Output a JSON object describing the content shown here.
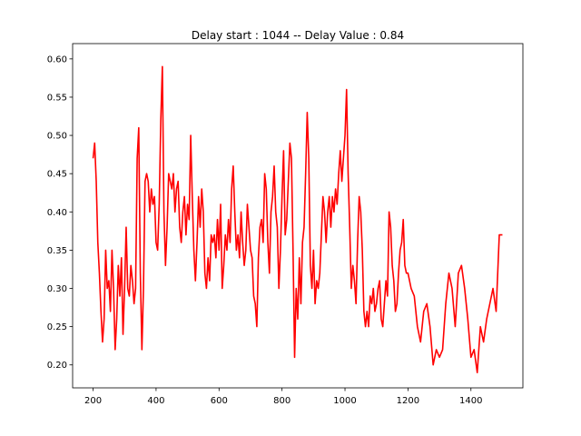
{
  "chart_data": {
    "type": "line",
    "title": "Delay start : 1044 -- Delay Value : 0.84",
    "color": "#ff0000",
    "x": [
      200,
      205,
      210,
      215,
      220,
      225,
      230,
      235,
      240,
      245,
      250,
      255,
      260,
      265,
      270,
      275,
      280,
      285,
      290,
      295,
      300,
      305,
      310,
      315,
      320,
      325,
      330,
      335,
      340,
      345,
      350,
      355,
      360,
      365,
      370,
      375,
      380,
      385,
      390,
      395,
      400,
      405,
      410,
      415,
      420,
      425,
      430,
      435,
      440,
      445,
      450,
      455,
      460,
      465,
      470,
      475,
      480,
      485,
      490,
      495,
      500,
      505,
      510,
      515,
      520,
      525,
      530,
      535,
      540,
      545,
      550,
      555,
      560,
      565,
      570,
      575,
      580,
      585,
      590,
      595,
      600,
      605,
      610,
      615,
      620,
      625,
      630,
      635,
      640,
      645,
      650,
      655,
      660,
      665,
      670,
      675,
      680,
      685,
      690,
      695,
      700,
      705,
      710,
      715,
      720,
      725,
      730,
      735,
      740,
      745,
      750,
      755,
      760,
      765,
      770,
      775,
      780,
      785,
      790,
      795,
      800,
      805,
      810,
      815,
      820,
      825,
      830,
      835,
      840,
      845,
      850,
      855,
      860,
      865,
      870,
      875,
      880,
      885,
      890,
      895,
      900,
      905,
      910,
      915,
      920,
      925,
      930,
      935,
      940,
      945,
      950,
      955,
      960,
      965,
      970,
      975,
      980,
      985,
      990,
      995,
      1000,
      1005,
      1010,
      1015,
      1020,
      1025,
      1030,
      1035,
      1040,
      1045,
      1050,
      1055,
      1060,
      1065,
      1070,
      1075,
      1080,
      1085,
      1090,
      1095,
      1100,
      1105,
      1110,
      1115,
      1120,
      1125,
      1130,
      1135,
      1140,
      1145,
      1150,
      1155,
      1160,
      1165,
      1170,
      1175,
      1180,
      1185,
      1190,
      1195,
      1200,
      1210,
      1220,
      1230,
      1240,
      1250,
      1260,
      1270,
      1280,
      1290,
      1300,
      1310,
      1320,
      1330,
      1340,
      1350,
      1360,
      1370,
      1380,
      1390,
      1400,
      1410,
      1420,
      1430,
      1440,
      1450,
      1460,
      1470,
      1480,
      1490,
      1500
    ],
    "values": [
      0.47,
      0.49,
      0.44,
      0.36,
      0.32,
      0.27,
      0.23,
      0.26,
      0.35,
      0.3,
      0.31,
      0.27,
      0.35,
      0.3,
      0.22,
      0.26,
      0.33,
      0.29,
      0.34,
      0.24,
      0.3,
      0.38,
      0.3,
      0.29,
      0.33,
      0.31,
      0.28,
      0.3,
      0.47,
      0.51,
      0.32,
      0.22,
      0.3,
      0.44,
      0.45,
      0.44,
      0.4,
      0.43,
      0.41,
      0.42,
      0.36,
      0.35,
      0.41,
      0.52,
      0.59,
      0.4,
      0.33,
      0.38,
      0.45,
      0.44,
      0.43,
      0.45,
      0.4,
      0.43,
      0.44,
      0.38,
      0.36,
      0.4,
      0.42,
      0.37,
      0.41,
      0.39,
      0.5,
      0.42,
      0.35,
      0.31,
      0.36,
      0.42,
      0.38,
      0.43,
      0.4,
      0.32,
      0.3,
      0.34,
      0.31,
      0.37,
      0.36,
      0.37,
      0.34,
      0.39,
      0.35,
      0.41,
      0.3,
      0.33,
      0.37,
      0.35,
      0.39,
      0.36,
      0.43,
      0.46,
      0.4,
      0.35,
      0.37,
      0.34,
      0.4,
      0.36,
      0.33,
      0.35,
      0.41,
      0.38,
      0.35,
      0.34,
      0.29,
      0.28,
      0.25,
      0.34,
      0.38,
      0.39,
      0.36,
      0.45,
      0.43,
      0.36,
      0.32,
      0.4,
      0.42,
      0.46,
      0.4,
      0.38,
      0.3,
      0.35,
      0.42,
      0.48,
      0.37,
      0.39,
      0.44,
      0.49,
      0.47,
      0.35,
      0.21,
      0.3,
      0.26,
      0.34,
      0.28,
      0.36,
      0.38,
      0.45,
      0.53,
      0.47,
      0.33,
      0.3,
      0.35,
      0.28,
      0.31,
      0.3,
      0.32,
      0.37,
      0.42,
      0.4,
      0.36,
      0.4,
      0.42,
      0.38,
      0.42,
      0.4,
      0.43,
      0.41,
      0.45,
      0.48,
      0.44,
      0.47,
      0.5,
      0.56,
      0.45,
      0.38,
      0.3,
      0.33,
      0.31,
      0.28,
      0.36,
      0.42,
      0.4,
      0.35,
      0.27,
      0.25,
      0.27,
      0.25,
      0.29,
      0.28,
      0.3,
      0.27,
      0.28,
      0.3,
      0.31,
      0.26,
      0.25,
      0.28,
      0.31,
      0.29,
      0.4,
      0.38,
      0.33,
      0.31,
      0.27,
      0.28,
      0.32,
      0.35,
      0.36,
      0.39,
      0.33,
      0.32,
      0.32,
      0.3,
      0.29,
      0.25,
      0.23,
      0.27,
      0.28,
      0.25,
      0.2,
      0.22,
      0.21,
      0.22,
      0.28,
      0.32,
      0.3,
      0.25,
      0.32,
      0.33,
      0.3,
      0.26,
      0.21,
      0.22,
      0.19,
      0.25,
      0.23,
      0.26,
      0.28,
      0.3,
      0.27,
      0.37,
      0.37
    ],
    "xlim": [
      135,
      1565
    ],
    "ylim": [
      0.17,
      0.62
    ],
    "xticks": [
      200,
      400,
      600,
      800,
      1000,
      1200,
      1400
    ],
    "yticks": [
      {
        "value": 0.2,
        "label": "0.20"
      },
      0.25,
      {
        "value": 0.3,
        "label": "0.30"
      },
      0.35,
      {
        "value": 0.4,
        "label": "0.40"
      },
      0.45,
      {
        "value": 0.5,
        "label": "0.50"
      },
      0.55,
      {
        "value": 0.6,
        "label": "0.60"
      }
    ]
  }
}
